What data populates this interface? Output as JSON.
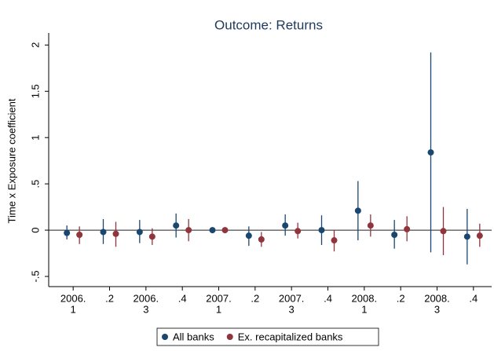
{
  "chart_data": {
    "type": "coefplot",
    "title": "Outcome: Returns",
    "y_label": "Time x Exposure coefficient",
    "categories": [
      [
        "2006.",
        "1"
      ],
      [
        ".2"
      ],
      [
        "2006.",
        "3"
      ],
      [
        ".4"
      ],
      [
        "2007.",
        "1"
      ],
      [
        ".2"
      ],
      [
        "2007.",
        "3"
      ],
      [
        ".4"
      ],
      [
        "2008.",
        "1"
      ],
      [
        ".2"
      ],
      [
        "2008.",
        "3"
      ],
      [
        ".4"
      ]
    ],
    "series": [
      {
        "name": "All banks",
        "color": "#1a476f",
        "values": [
          -0.03,
          -0.02,
          -0.02,
          0.05,
          0.0,
          -0.06,
          0.05,
          0.0,
          0.21,
          -0.05,
          0.84,
          -0.07
        ],
        "lower": [
          -0.1,
          -0.15,
          -0.14,
          -0.08,
          -0.01,
          -0.17,
          -0.06,
          -0.16,
          -0.11,
          -0.2,
          -0.24,
          -0.37
        ],
        "upper": [
          0.05,
          0.12,
          0.11,
          0.18,
          0.01,
          0.04,
          0.17,
          0.16,
          0.53,
          0.11,
          1.92,
          0.23
        ]
      },
      {
        "name": "Ex. recapitalized banks",
        "color": "#90353b",
        "values": [
          -0.05,
          -0.04,
          -0.07,
          0.0,
          0.0,
          -0.1,
          -0.01,
          -0.11,
          0.05,
          0.01,
          -0.01,
          -0.06
        ],
        "lower": [
          -0.15,
          -0.18,
          -0.16,
          -0.12,
          -0.01,
          -0.18,
          -0.09,
          -0.23,
          -0.07,
          -0.12,
          -0.27,
          -0.18
        ],
        "upper": [
          0.04,
          0.09,
          0.02,
          0.12,
          0.01,
          -0.02,
          0.08,
          0.0,
          0.17,
          0.15,
          0.25,
          0.07
        ]
      }
    ],
    "ylim": [
      -0.61,
      2.13
    ],
    "yticks": [
      {
        "value": -0.5,
        "label": "-.5"
      },
      0,
      {
        "value": 0.5,
        "label": ".5"
      },
      1,
      1.5,
      2
    ],
    "refline": 0,
    "legend": "bottom"
  }
}
